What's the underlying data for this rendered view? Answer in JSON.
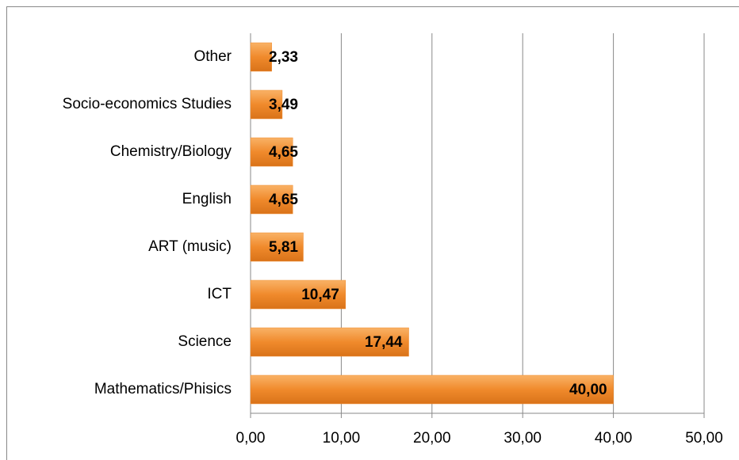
{
  "chart_data": {
    "type": "bar",
    "orientation": "horizontal",
    "categories": [
      "Mathematics/Phisics",
      "Science",
      "ICT",
      "ART (music)",
      "English",
      "Chemistry/Biology",
      "Socio-economics Studies",
      "Other"
    ],
    "values": [
      40.0,
      17.44,
      10.47,
      5.81,
      4.65,
      4.65,
      3.49,
      2.33
    ],
    "value_labels": [
      "40,00",
      "17,44",
      "10,47",
      "5,81",
      "4,65",
      "4,65",
      "3,49",
      "2,33"
    ],
    "color": "#f08a2c",
    "xlim": [
      0,
      50
    ],
    "xticks": [
      {
        "value": 0,
        "label": "0,00"
      },
      {
        "value": 10,
        "label": "10,00"
      },
      {
        "value": 20,
        "label": "20,00"
      },
      {
        "value": 30,
        "label": "30,00"
      },
      {
        "value": 40,
        "label": "40,00"
      },
      {
        "value": 50,
        "label": "50,00"
      }
    ],
    "grid": true
  }
}
